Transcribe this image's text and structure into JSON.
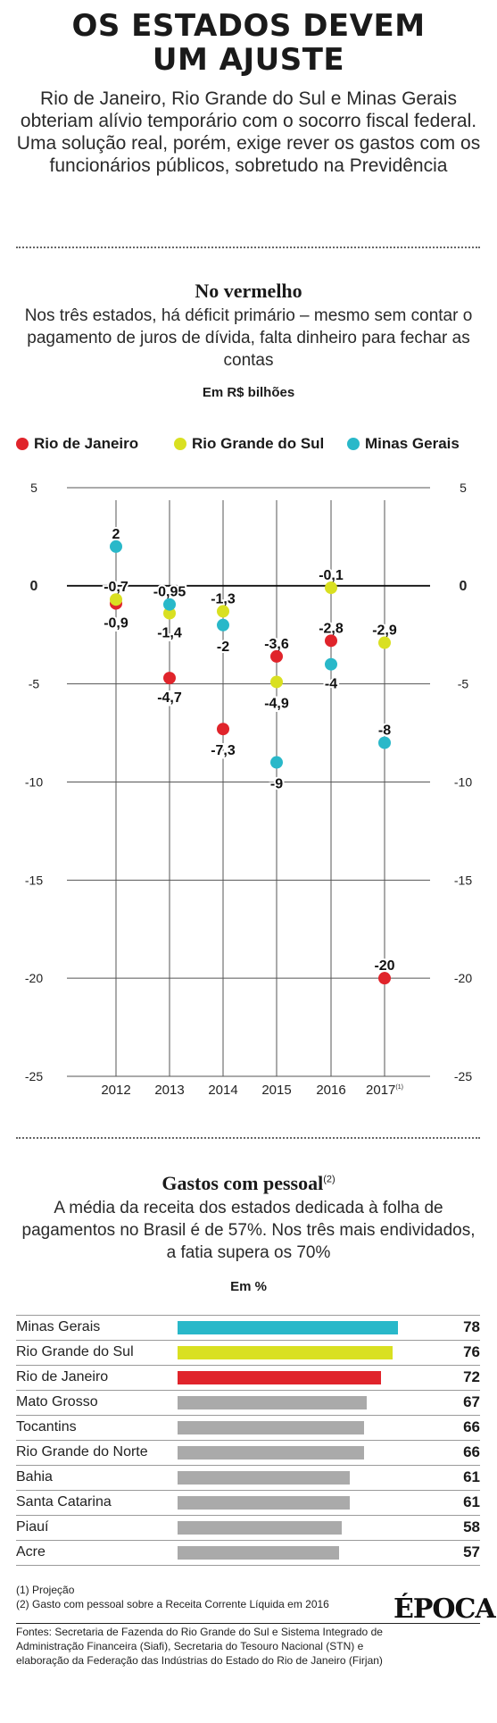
{
  "header": {
    "title_line1": "OS ESTADOS DEVEM",
    "title_line2": "UM AJUSTE",
    "intro": "Rio de Janeiro, Rio Grande do Sul e Minas Gerais obteriam alívio temporário com o socorro fiscal federal. Uma solução real, porém, exige rever os gastos com os funcionários públicos, sobretudo na Previdência"
  },
  "section1": {
    "title": "No vermelho",
    "description": "Nos três estados, há déficit primário – mesmo sem contar o pagamento de juros de dívida, falta dinheiro para fechar as contas",
    "unit": "Em R$ bilhões"
  },
  "section2": {
    "title": "Gastos com pessoal",
    "title_note": "(2)",
    "description": "A média da receita dos estados dedicada à folha de pagamentos no Brasil é de 57%. Nos três mais endividados, a fatia supera os 70%",
    "unit": "Em %"
  },
  "notes": {
    "note1": "(1) Projeção",
    "note2": "(2) Gasto com pessoal sobre a Receita Corrente Líquida em 2016"
  },
  "sources": "Fontes: Secretaria de Fazenda do Rio Grande do Sul e Sistema Integrado de Administração Financeira (Siafi), Secretaria do Tesouro Nacional (STN) e elaboração da Federação das Indústrias do Estado do Rio de Janeiro (Firjan)",
  "logo": "ÉPOCA",
  "colors": {
    "rio_de_janeiro": "#e0242b",
    "rio_grande_do_sul": "#d9e021",
    "minas_gerais": "#29b8c9",
    "other": "#aaaaaa"
  },
  "chart_data": [
    {
      "type": "scatter",
      "title": "No vermelho",
      "ylabel": "Em R$ bilhões",
      "x": [
        "2012",
        "2013",
        "2014",
        "2015",
        "2016",
        "2017"
      ],
      "x_notes": [
        "",
        "",
        "",
        "",
        "",
        "(1)"
      ],
      "ylim": [
        -25,
        5
      ],
      "yticks": [
        5,
        0,
        -5,
        -10,
        -15,
        -20,
        -25
      ],
      "ytick_labels": [
        "5",
        "0",
        "-5",
        "-10",
        "-15",
        "-20",
        "-25"
      ],
      "grid": true,
      "legend_position": "top",
      "series": [
        {
          "name": "Rio de Janeiro",
          "color": "#e0242b",
          "values": [
            -0.9,
            -4.7,
            -7.3,
            -3.6,
            -2.8,
            -20
          ],
          "labels": [
            "-0,9",
            "-4,7",
            "-7,3",
            "-3,6",
            "-2,8",
            "-20"
          ]
        },
        {
          "name": "Rio Grande do Sul",
          "color": "#d9e021",
          "values": [
            -0.7,
            -1.4,
            -1.3,
            -4.9,
            -0.1,
            -2.9
          ],
          "labels": [
            "-0,7",
            "-1,4",
            "-1,3",
            "-4,9",
            "-0,1",
            "-2,9"
          ]
        },
        {
          "name": "Minas Gerais",
          "color": "#29b8c9",
          "values": [
            2,
            -0.95,
            -2,
            -9,
            -4,
            -8
          ],
          "labels": [
            "2",
            "-0,95",
            "-2",
            "-9",
            "-4",
            "-8"
          ]
        }
      ]
    },
    {
      "type": "bar",
      "title": "Gastos com pessoal",
      "ylabel": "Em %",
      "orientation": "horizontal",
      "categories": [
        "Minas Gerais",
        "Rio Grande do Sul",
        "Rio de Janeiro",
        "Mato Grosso",
        "Tocantins",
        "Rio Grande do Norte",
        "Bahia",
        "Santa Catarina",
        "Piauí",
        "Acre"
      ],
      "values": [
        78,
        76,
        72,
        67,
        66,
        66,
        61,
        61,
        58,
        57
      ],
      "colors": [
        "#29b8c9",
        "#d9e021",
        "#e0242b",
        "#aaaaaa",
        "#aaaaaa",
        "#aaaaaa",
        "#aaaaaa",
        "#aaaaaa",
        "#aaaaaa",
        "#aaaaaa"
      ]
    }
  ]
}
